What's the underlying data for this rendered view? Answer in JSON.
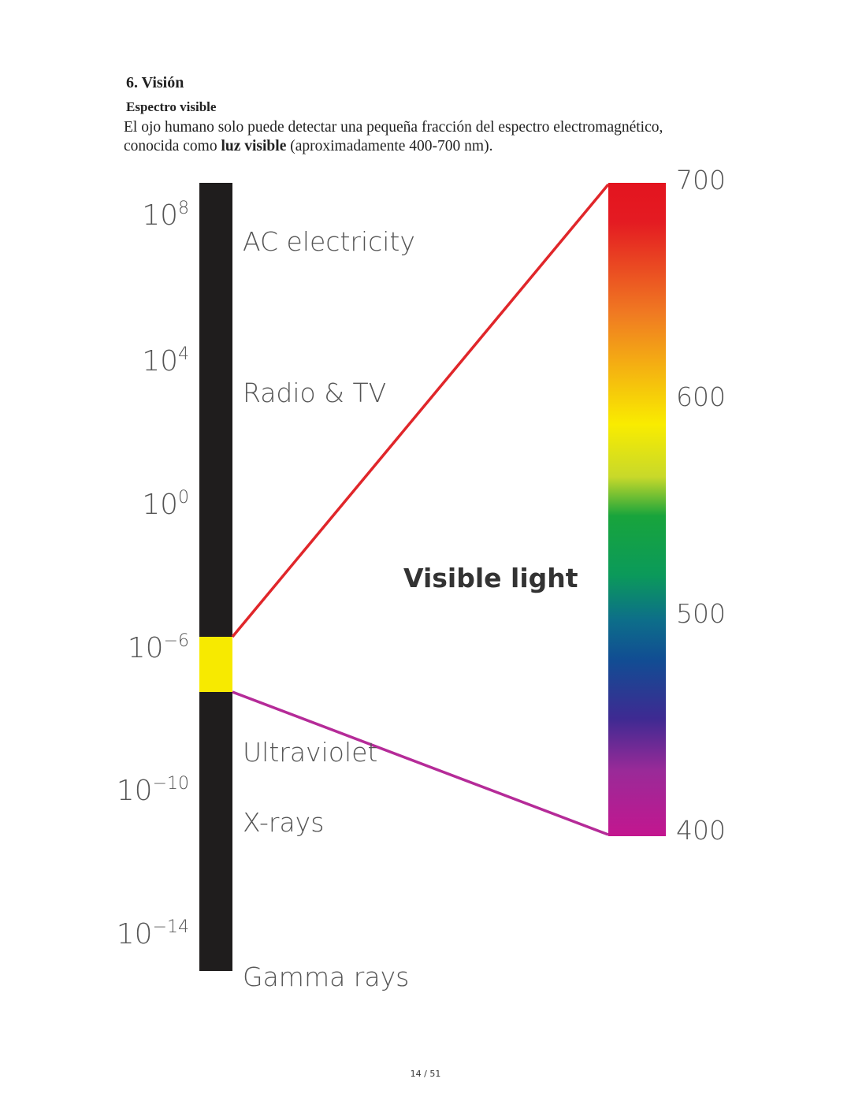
{
  "header": {
    "title": "6. Visión",
    "subtitle": "Espectro visible"
  },
  "paragraph": {
    "before": "El ojo humano solo puede detectar una pequeña fracción del espectro electromagnético, conocida como ",
    "bold": "luz visible",
    "after": " (aproximadamente 400-700 nm)."
  },
  "diagram": {
    "scale": [
      {
        "base": "10",
        "exp": "8"
      },
      {
        "base": "10",
        "exp": "4"
      },
      {
        "base": "10",
        "exp": "0"
      },
      {
        "base": "10",
        "exp": "−6"
      },
      {
        "base": "10",
        "exp": "−10"
      },
      {
        "base": "10",
        "exp": "−14"
      }
    ],
    "bands": [
      "AC electricity",
      "Radio & TV",
      "Ultraviolet",
      "X-rays",
      "Gamma rays"
    ],
    "visible_label": "Visible light",
    "wavelengths": [
      "700",
      "600",
      "500",
      "400"
    ]
  },
  "footer": {
    "page": "14 / 51"
  }
}
